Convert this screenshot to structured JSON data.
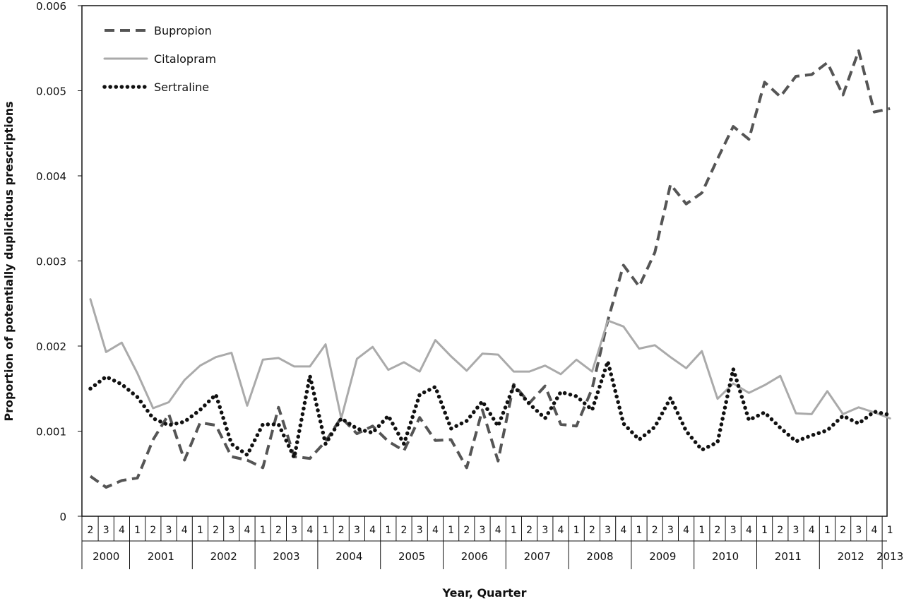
{
  "chart_data": {
    "type": "line",
    "xlabel": "Year, Quarter",
    "ylabel": "Proportion of potentially duplicitous prescriptions",
    "ylim": [
      0,
      0.006
    ],
    "yticks": [
      "0",
      "0.001",
      "0.002",
      "0.003",
      "0.004",
      "0.005",
      "0.006"
    ],
    "grid": false,
    "legend_position": "top-left",
    "years": [
      {
        "label": "2000",
        "quarters": [
          "2",
          "3",
          "4"
        ]
      },
      {
        "label": "2001",
        "quarters": [
          "1",
          "2",
          "3",
          "4"
        ]
      },
      {
        "label": "2002",
        "quarters": [
          "1",
          "2",
          "3",
          "4"
        ]
      },
      {
        "label": "2003",
        "quarters": [
          "1",
          "2",
          "3",
          "4"
        ]
      },
      {
        "label": "2004",
        "quarters": [
          "1",
          "2",
          "3",
          "4"
        ]
      },
      {
        "label": "2005",
        "quarters": [
          "1",
          "2",
          "3",
          "4"
        ]
      },
      {
        "label": "2006",
        "quarters": [
          "1",
          "2",
          "3",
          "4"
        ]
      },
      {
        "label": "2007",
        "quarters": [
          "1",
          "2",
          "3",
          "4"
        ]
      },
      {
        "label": "2008",
        "quarters": [
          "1",
          "2",
          "3",
          "4"
        ]
      },
      {
        "label": "2009",
        "quarters": [
          "1",
          "2",
          "3",
          "4"
        ]
      },
      {
        "label": "2010",
        "quarters": [
          "1",
          "2",
          "3",
          "4"
        ]
      },
      {
        "label": "2011",
        "quarters": [
          "1",
          "2",
          "3",
          "4"
        ]
      },
      {
        "label": "2012",
        "quarters": [
          "1",
          "2",
          "3",
          "4"
        ]
      },
      {
        "label": "2013",
        "quarters": [
          "1"
        ]
      }
    ],
    "series": [
      {
        "name": "Bupropion",
        "color": "#555555",
        "style": "dashed",
        "values": [
          0.00047,
          0.00034,
          0.00042,
          0.00045,
          0.0009,
          0.0012,
          0.00066,
          0.0011,
          0.00107,
          0.0007,
          0.00066,
          0.00057,
          0.00128,
          0.0007,
          0.00068,
          0.00088,
          0.00116,
          0.00097,
          0.00106,
          0.00088,
          0.00077,
          0.00116,
          0.00089,
          0.0009,
          0.00057,
          0.00125,
          0.00065,
          0.00155,
          0.00133,
          0.00153,
          0.00108,
          0.00106,
          0.0015,
          0.0023,
          0.00295,
          0.0027,
          0.0031,
          0.0039,
          0.00367,
          0.0038,
          0.0042,
          0.00458,
          0.00443,
          0.0051,
          0.00493,
          0.00517,
          0.00519,
          0.00533,
          0.00495,
          0.00547,
          0.00475,
          0.00479
        ]
      },
      {
        "name": "Citalopram",
        "color": "#aaaaaa",
        "style": "solid",
        "values": [
          0.00255,
          0.00193,
          0.00204,
          0.00168,
          0.00127,
          0.00134,
          0.0016,
          0.00177,
          0.00187,
          0.00192,
          0.0013,
          0.00184,
          0.00186,
          0.00176,
          0.00176,
          0.00202,
          0.00115,
          0.00185,
          0.00199,
          0.00172,
          0.00181,
          0.0017,
          0.00207,
          0.00188,
          0.00171,
          0.00191,
          0.0019,
          0.0017,
          0.0017,
          0.00177,
          0.00167,
          0.00184,
          0.0017,
          0.0023,
          0.00223,
          0.00197,
          0.00201,
          0.00187,
          0.00174,
          0.00194,
          0.00138,
          0.00156,
          0.00145,
          0.00154,
          0.00165,
          0.00121,
          0.0012,
          0.00147,
          0.0012,
          0.00128,
          0.00122,
          0.00115
        ]
      },
      {
        "name": "Sertraline",
        "color": "#111111",
        "style": "dotted",
        "values": [
          0.0015,
          0.00164,
          0.00155,
          0.0014,
          0.00115,
          0.00107,
          0.00111,
          0.00125,
          0.00143,
          0.00085,
          0.00072,
          0.00108,
          0.00108,
          0.00069,
          0.00165,
          0.00085,
          0.00115,
          0.00103,
          0.00098,
          0.00118,
          0.00085,
          0.00143,
          0.00152,
          0.00103,
          0.00112,
          0.00135,
          0.00106,
          0.00153,
          0.00132,
          0.00115,
          0.00146,
          0.00141,
          0.00125,
          0.00182,
          0.00109,
          0.0009,
          0.00105,
          0.00139,
          0.001,
          0.00078,
          0.00087,
          0.00173,
          0.00113,
          0.00122,
          0.00104,
          0.00088,
          0.00095,
          0.00101,
          0.00118,
          0.00109,
          0.00123,
          0.00119
        ]
      }
    ]
  }
}
